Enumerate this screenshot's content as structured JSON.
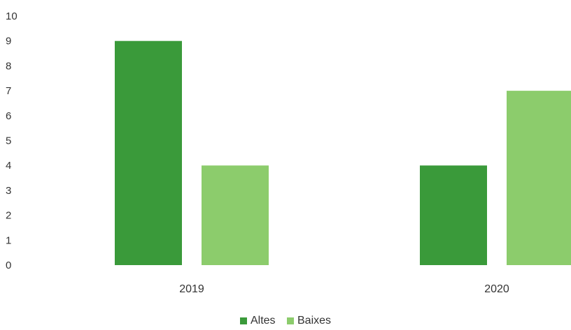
{
  "chart_data": {
    "type": "bar",
    "categories": [
      "2019",
      "2020"
    ],
    "series": [
      {
        "name": "Altes",
        "values": [
          9,
          4
        ],
        "color": "#3a9a3a"
      },
      {
        "name": "Baixes",
        "values": [
          4,
          7
        ],
        "color": "#8ccc6c"
      }
    ],
    "ylim": [
      0,
      10
    ],
    "yticks": [
      "0",
      "1",
      "2",
      "3",
      "4",
      "5",
      "6",
      "7",
      "8",
      "9",
      "10"
    ],
    "title": "",
    "xlabel": "",
    "ylabel": "",
    "grid": false,
    "legend_position": "bottom"
  }
}
